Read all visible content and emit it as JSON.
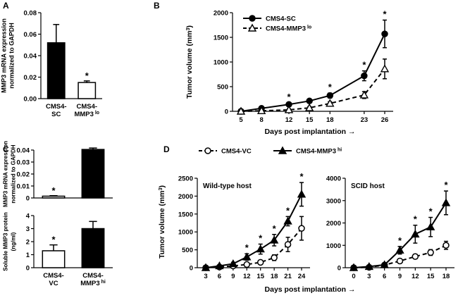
{
  "panel_labels": {
    "A": "A",
    "B": "B",
    "C": "C",
    "D": "D"
  },
  "chart_data": [
    {
      "id": "A",
      "type": "bar",
      "categories": [
        [
          "CMS4-",
          "SC"
        ],
        [
          "CMS4-",
          "MMP3 lo"
        ]
      ],
      "values": [
        0.052,
        0.015
      ],
      "errors": [
        0.017,
        0.0015
      ],
      "colors": [
        "#000000",
        "#ffffff"
      ],
      "ylabel": [
        "MMP3 mRNA expression",
        "normalized to GAPDH"
      ],
      "ylim": [
        0,
        0.08
      ],
      "yticks": [
        "0.00",
        "0.02",
        "0.04",
        "0.06",
        "0.08"
      ],
      "significance": [
        "",
        "*"
      ]
    },
    {
      "id": "B",
      "type": "line",
      "x": [
        5,
        8,
        12,
        15,
        18,
        23,
        26
      ],
      "xticks": [
        "5",
        "8",
        "12",
        "15",
        "18",
        "23",
        "26"
      ],
      "series": [
        {
          "name": "CMS4-SC",
          "values": [
            0,
            60,
            140,
            210,
            320,
            720,
            1570
          ],
          "errors": [
            15,
            25,
            30,
            30,
            50,
            100,
            280
          ],
          "marker": "filled-circle",
          "dash": false
        },
        {
          "name": "CMS4-MMP3 lo",
          "values": [
            0,
            10,
            30,
            70,
            160,
            330,
            860
          ],
          "errors": [
            10,
            15,
            20,
            25,
            35,
            70,
            200
          ],
          "marker": "open-triangle",
          "dash": true
        }
      ],
      "ylabel": "Tumor volume (mm3)",
      "xlabel": "Days post implantation →",
      "ylim": [
        0,
        2000
      ],
      "yticks": [
        "0",
        "500",
        "1000",
        "1500",
        "2000"
      ],
      "significance_x": [
        12,
        18,
        23,
        26
      ],
      "star": "*"
    },
    {
      "id": "C-top",
      "type": "bar",
      "values": [
        0.0015,
        0.0405
      ],
      "errors": [
        0.0004,
        0.0012
      ],
      "colors": [
        "#ffffff",
        "#000000"
      ],
      "ylabel": [
        "MMP3 mRNA expression",
        "normalized to GAPDH"
      ],
      "ylim": [
        0,
        0.04
      ],
      "yticks": [
        "0",
        "0.01",
        "0.02",
        "0.03",
        "0.04"
      ],
      "significance": [
        "*",
        ""
      ]
    },
    {
      "id": "C-bottom",
      "type": "bar",
      "categories": [
        [
          "CMS4-",
          "VC"
        ],
        [
          "CMS4-",
          "MMP3 hi"
        ]
      ],
      "values": [
        1.3,
        3.0
      ],
      "errors": [
        0.45,
        0.55
      ],
      "colors": [
        "#ffffff",
        "#000000"
      ],
      "ylabel": [
        "Soluble MMP3 protein",
        "(ng/ml)"
      ],
      "ylim": [
        0,
        4
      ],
      "yticks": [
        "0",
        "1",
        "2",
        "3",
        "4"
      ],
      "significance": [
        "*",
        ""
      ]
    },
    {
      "id": "D-left",
      "type": "line",
      "title": "Wild-type host",
      "x": [
        3,
        6,
        9,
        12,
        15,
        18,
        21,
        24
      ],
      "xticks": [
        "3",
        "6",
        "9",
        "12",
        "15",
        "18",
        "21",
        "24"
      ],
      "series": [
        {
          "name": "CMS4-VC",
          "values": [
            0,
            20,
            50,
            90,
            150,
            280,
            650,
            1100
          ],
          "errors": [
            10,
            15,
            20,
            30,
            40,
            80,
            200,
            330
          ],
          "marker": "open-circle",
          "dash": true
        },
        {
          "name": "CMS4-MMP3 hi",
          "values": [
            0,
            50,
            110,
            300,
            520,
            770,
            1300,
            2050
          ],
          "errors": [
            10,
            20,
            40,
            90,
            140,
            160,
            130,
            330
          ],
          "marker": "filled-triangle",
          "dash": false
        }
      ],
      "ylabel": "Tumor volume (mm3)",
      "ylim": [
        0,
        2500
      ],
      "yticks": [
        "0",
        "500",
        "1000",
        "1500",
        "2000",
        "2500"
      ],
      "significance_x": [
        12,
        15,
        18,
        21,
        24
      ],
      "star": "*"
    },
    {
      "id": "D-right",
      "type": "line",
      "title": "SCID host",
      "x": [
        0,
        3,
        6,
        9,
        12,
        15,
        18
      ],
      "xticks": [
        "0",
        "3",
        "6",
        "9",
        "12",
        "15",
        "18"
      ],
      "series": [
        {
          "name": "CMS4-VC",
          "values": [
            0,
            20,
            120,
            300,
            500,
            680,
            1000
          ],
          "errors": [
            10,
            15,
            40,
            60,
            100,
            130,
            180
          ],
          "marker": "open-circle",
          "dash": true
        },
        {
          "name": "CMS4-MMP3 hi",
          "values": [
            0,
            50,
            130,
            780,
            1500,
            1820,
            2900
          ],
          "errors": [
            10,
            20,
            50,
            170,
            400,
            430,
            530
          ],
          "marker": "filled-triangle",
          "dash": false
        }
      ],
      "ylim": [
        0,
        4000
      ],
      "yticks": [
        "0",
        "1000",
        "2000",
        "3000",
        "4000"
      ],
      "significance_x": [
        9,
        12,
        15,
        18
      ],
      "star": "*"
    }
  ],
  "legend_D": [
    {
      "name": "CMS4-VC",
      "sup": "",
      "marker": "open-circle",
      "dash": true
    },
    {
      "name": "CMS4-MMP3",
      "sup": "hi",
      "marker": "filled-triangle",
      "dash": false
    }
  ],
  "legend_B": [
    {
      "name": "CMS4-SC",
      "sup": "",
      "marker": "filled-circle",
      "dash": false
    },
    {
      "name": "CMS4-MMP3",
      "sup": "lo",
      "marker": "open-triangle",
      "dash": true
    }
  ],
  "xlabel_D": "Days post implantation →"
}
